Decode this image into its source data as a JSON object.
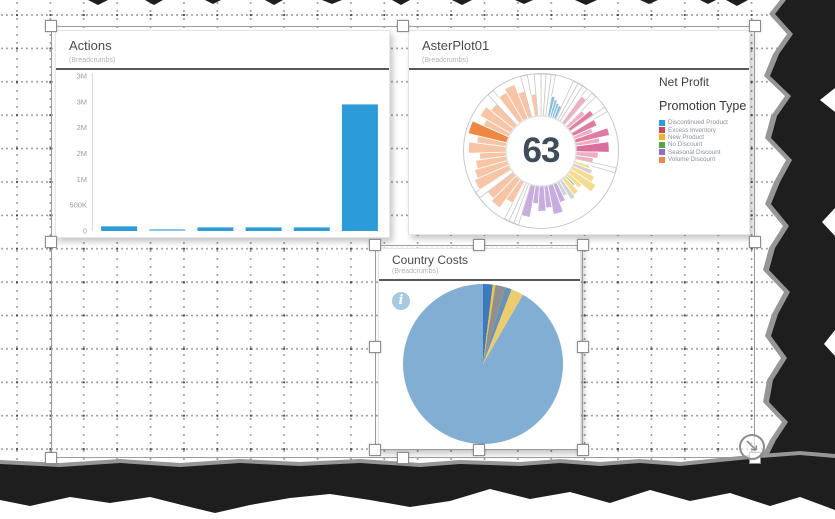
{
  "actions_visual": {
    "title": "Actions",
    "subtitle": "(Breadcrumbs)",
    "chart_data": {
      "type": "bar",
      "categories": [
        "",
        "",
        "",
        "",
        "",
        ""
      ],
      "values": [
        90000,
        35000,
        70000,
        70000,
        70000,
        2450000
      ],
      "bar_colors": [
        "#2b9cd8",
        "#85c6ea",
        "#2b9cd8",
        "#2b9cd8",
        "#2b9cd8",
        "#2b9cd8"
      ],
      "ylim": [
        0,
        3000000
      ],
      "y_ticks": [
        {
          "v": 3000000,
          "label": "3M"
        },
        {
          "v": 2500000,
          "label": "3M"
        },
        {
          "v": 2000000,
          "label": "2M"
        },
        {
          "v": 1500000,
          "label": "2M"
        },
        {
          "v": 1000000,
          "label": "1M"
        },
        {
          "v": 500000,
          "label": "500K"
        },
        {
          "v": 0,
          "label": "0"
        }
      ],
      "grid": false,
      "legend": "none"
    }
  },
  "aster_visual": {
    "title": "AsterPlot01",
    "subtitle": "(Breadcrumbs)",
    "panel_title": "Net Profit",
    "legend_title": "Promotion Type",
    "center_value": "63",
    "legend": [
      {
        "label": "Discontinued Product",
        "color": "#2d9bd9"
      },
      {
        "label": "Excess Inventory",
        "color": "#d14459"
      },
      {
        "label": "New Product",
        "color": "#f2b41f"
      },
      {
        "label": "No Discount",
        "color": "#55a44e"
      },
      {
        "label": "Seasonal Discount",
        "color": "#9569bd"
      },
      {
        "label": "Volume Discount",
        "color": "#f2874b"
      }
    ],
    "chart_data": {
      "type": "aster",
      "center_label": "63",
      "palette": {
        "w": "#ffffff",
        "b": "#85bee3",
        "p": "#f0aec2",
        "P": "#e07ca4",
        "D": "#db6e9c",
        "y": "#f7db92",
        "g": "#d2d2d2",
        "G": "#8fc693",
        "v": "#c7adde",
        "s": "#f7c4a6",
        "o": "#ef8742"
      },
      "segments": [
        [
          3,
          1,
          "w"
        ],
        [
          3,
          1,
          "w"
        ],
        [
          2.5,
          1,
          "w"
        ],
        [
          3,
          0.52,
          "b"
        ],
        [
          2.5,
          0.46,
          "b"
        ],
        [
          2.5,
          0.4,
          "b"
        ],
        [
          3,
          0.36,
          "b"
        ],
        [
          3,
          1,
          "w"
        ],
        [
          3,
          1,
          "w"
        ],
        [
          3,
          1,
          "w"
        ],
        [
          4,
          0.8,
          "p"
        ],
        [
          3,
          1,
          "w"
        ],
        [
          4,
          0.55,
          "p"
        ],
        [
          4,
          0.7,
          "P"
        ],
        [
          3,
          1,
          "w"
        ],
        [
          5,
          0.65,
          "P"
        ],
        [
          4,
          0.5,
          "p"
        ],
        [
          5,
          0.85,
          "P"
        ],
        [
          4,
          0.6,
          "p"
        ],
        [
          7,
          0.8,
          "D"
        ],
        [
          5,
          0.55,
          "p"
        ],
        [
          4,
          0.45,
          "p"
        ],
        [
          3,
          1,
          "w"
        ],
        [
          3,
          0.42,
          "y"
        ],
        [
          4,
          0.5,
          "g"
        ],
        [
          5,
          0.6,
          "y"
        ],
        [
          6,
          0.72,
          "y"
        ],
        [
          4,
          0.45,
          "y"
        ],
        [
          2,
          0.33,
          "G"
        ],
        [
          5,
          0.5,
          "y"
        ],
        [
          4,
          0.55,
          "g"
        ],
        [
          4,
          0.4,
          "g"
        ],
        [
          5,
          0.5,
          "v"
        ],
        [
          7,
          0.72,
          "v"
        ],
        [
          5,
          0.55,
          "v"
        ],
        [
          6,
          0.62,
          "v"
        ],
        [
          5,
          0.45,
          "v"
        ],
        [
          6,
          0.78,
          "v"
        ],
        [
          3,
          1,
          "w"
        ],
        [
          3,
          1,
          "w"
        ],
        [
          3,
          1,
          "w"
        ],
        [
          6,
          0.6,
          "s"
        ],
        [
          7,
          0.85,
          "s"
        ],
        [
          6,
          0.78,
          "s"
        ],
        [
          4,
          1,
          "w"
        ],
        [
          7,
          0.9,
          "s"
        ],
        [
          6,
          0.82,
          "s"
        ],
        [
          6,
          0.75,
          "s"
        ],
        [
          5,
          0.65,
          "s"
        ],
        [
          7,
          0.9,
          "s"
        ],
        [
          5,
          0.72,
          "s"
        ],
        [
          8,
          0.95,
          "o"
        ],
        [
          5,
          0.68,
          "s"
        ],
        [
          7,
          0.85,
          "s"
        ],
        [
          6,
          0.72,
          "s"
        ],
        [
          4,
          1,
          "w"
        ],
        [
          6,
          0.8,
          "s"
        ],
        [
          7,
          0.88,
          "s"
        ],
        [
          5,
          0.66,
          "s"
        ],
        [
          4,
          1,
          "w"
        ],
        [
          4,
          0.55,
          "s"
        ],
        [
          4,
          1,
          "w"
        ]
      ]
    }
  },
  "country_visual": {
    "title": "Country Costs",
    "subtitle": "(Breadcrumbs)",
    "info_glyph": "i",
    "chart_data": {
      "type": "pie",
      "slices": [
        {
          "deg": 7,
          "color": "#3c79be"
        },
        {
          "deg": 2,
          "color": "#f0c33c"
        },
        {
          "deg": 7,
          "color": "#909090"
        },
        {
          "deg": 5,
          "color": "#6792b4"
        },
        {
          "deg": 9,
          "color": "#edcb6f"
        },
        {
          "deg": 330,
          "color": "#82aed3"
        }
      ]
    }
  }
}
